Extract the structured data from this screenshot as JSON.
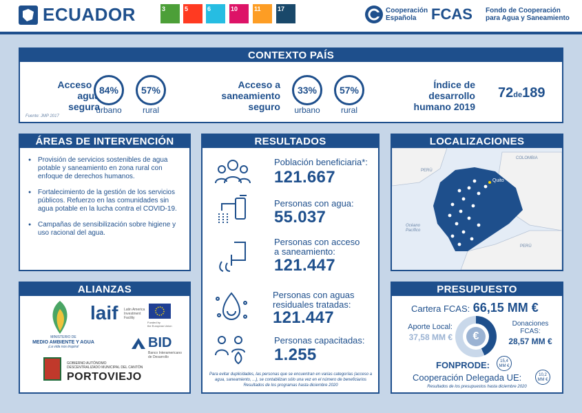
{
  "header": {
    "country": "ECUADOR",
    "sdgs": [
      {
        "num": "3",
        "color": "#4c9f38"
      },
      {
        "num": "5",
        "color": "#ff3a21"
      },
      {
        "num": "6",
        "color": "#26bde2"
      },
      {
        "num": "10",
        "color": "#dd1367"
      },
      {
        "num": "11",
        "color": "#fd9d24"
      },
      {
        "num": "17",
        "color": "#19486a"
      }
    ],
    "coop_name": "Cooperación",
    "coop_name2": "Española",
    "fcas_mark": "FCAS",
    "fcas_name": "Fondo de Cooperación",
    "fcas_name2": "para Agua y Saneamiento"
  },
  "contexto": {
    "title": "CONTEXTO PAÍS",
    "agua_label_1": "Acceso a",
    "agua_label_2": "agua",
    "agua_label_3": "segura",
    "agua_urbano": "84%",
    "agua_rural": "57%",
    "saneamiento_label_1": "Acceso a",
    "saneamiento_label_2": "saneamiento",
    "saneamiento_label_3": "seguro",
    "saneamiento_urbano": "33%",
    "saneamiento_rural": "57%",
    "urbano": "urbano",
    "rural": "rural",
    "idh_label_1": "Índice de",
    "idh_label_2": "desarrollo",
    "idh_label_3": "humano 2019",
    "idh_rank": "72",
    "idh_de": "de",
    "idh_total": "189",
    "source": "Fuente: JMP 2017"
  },
  "areas": {
    "title": "ÁREAS DE INTERVENCIÓN",
    "items": [
      "Provisión de servicios sostenibles de agua potable y saneamiento en zona rural con enfoque de derechos humanos.",
      "Fortalecimiento de la gestión de los servicios públicos. Refuerzo en las comunidades sin agua potable en la lucha contra el COVID-19.",
      "Campañas de sensibilización sobre higiene y uso racional del agua."
    ]
  },
  "resultados": {
    "title": "RESULTADOS",
    "items": [
      {
        "label1": "Población beneficiaria*:",
        "label2": "",
        "value": "121.667"
      },
      {
        "label1": "Personas con agua:",
        "label2": "",
        "value": "55.037"
      },
      {
        "label1": "Personas con acceso",
        "label2": "a saneamiento:",
        "value": "121.447"
      },
      {
        "label1": "Personas con aguas",
        "label2": "residuales tratadas:",
        "value": "121.447"
      },
      {
        "label1": "Personas capacitadas:",
        "label2": "",
        "value": "1.255"
      }
    ],
    "note1": "Para evitar duplicidades, las personas que se encuentran en varias categorías (acceso a",
    "note2": "agua, saneamiento, ...), se contabilizan sólo una vez en el número de beneficiarios",
    "note3": "Resultados de los programas hasta diciembre 2020"
  },
  "localizaciones": {
    "title": "LOCALIZACIONES",
    "colombia": "COLOMBIA",
    "peru_nw": "PERÚ",
    "peru_se": "PERÚ",
    "quito": "Quito",
    "ocean_1": "Océano",
    "ocean_2": "Pacífico"
  },
  "alianzas": {
    "title": "ALIANZAS",
    "ministerio_1": "MINISTERIO DE",
    "ministerio_2": "MEDIO AMBIENTE Y AGUA",
    "ministerio_3": "¡La vida nos inspira!",
    "laif": "laif",
    "laif_sub_1": "Latin America",
    "laif_sub_2": "Investment",
    "laif_sub_3": "Facility",
    "eu_sub_1": "Funded by",
    "eu_sub_2": "the European Union",
    "bid": "BID",
    "bid_sub_1": "Banco Interamericano",
    "bid_sub_2": "de Desarrollo",
    "gob_1": "GOBIERNO AUTÓNOMO",
    "gob_2": "DESCENTRALIZADO MUNICIPAL DEL CANTÓN",
    "gob_3": "PORTOVIEJO"
  },
  "presupuesto": {
    "title": "PRESUPUESTO",
    "cartera_label": "Cartera FCAS:",
    "cartera_value": "66,15 MM €",
    "aporte_label": "Aporte Local:",
    "aporte_value": "37,58 MM €",
    "donaciones_label_1": "Donaciones",
    "donaciones_label_2": "FCAS:",
    "donaciones_value": "28,57 MM €",
    "euro_symbol": "€",
    "fonprode_label": "FONPRODE:",
    "fonprode_value_1": "15,4",
    "fonprode_value_2": "MM €",
    "ue_label": "Cooperación Delegada UE:",
    "ue_value_1": "10,2",
    "ue_value_2": "MM €",
    "note": "Resultados de los presupuestos hasta diciembre 2020"
  }
}
